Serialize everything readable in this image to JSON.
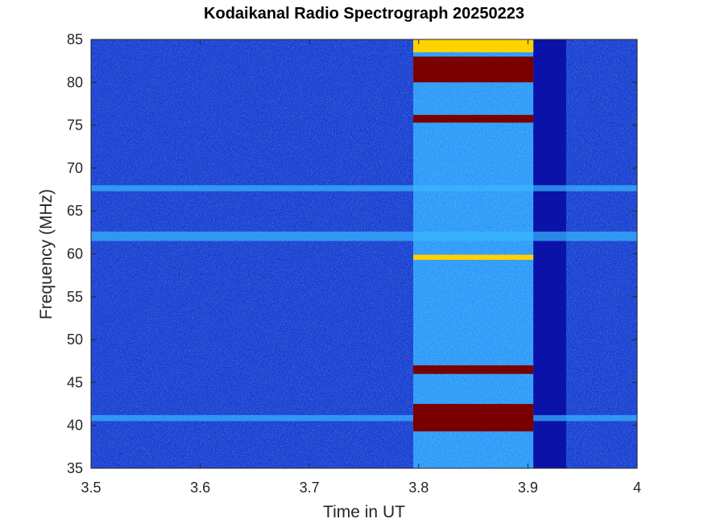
{
  "chart_data": {
    "type": "heatmap",
    "title": "Kodaikanal Radio Spectrograph  20250223",
    "xlabel": "Time in UT",
    "ylabel": "Frequency (MHz)",
    "xlim": [
      3.5,
      4.0
    ],
    "ylim": [
      35,
      85
    ],
    "x_ticks": [
      3.5,
      3.6,
      3.7,
      3.8,
      3.9,
      4.0
    ],
    "x_tick_labels": [
      "3.5",
      "3.6",
      "3.7",
      "3.8",
      "3.9",
      "4"
    ],
    "y_ticks": [
      35,
      40,
      45,
      50,
      55,
      60,
      65,
      70,
      75,
      80,
      85
    ],
    "y_tick_labels": [
      "35",
      "40",
      "45",
      "50",
      "55",
      "60",
      "65",
      "70",
      "75",
      "80",
      "85"
    ],
    "grid": false,
    "colormap": "jet",
    "colors": {
      "background": "#1a3fd0",
      "quiet": "#0a12a8",
      "burst": "#2fa8ff",
      "saturated": "#7a0000",
      "hot": "#ffd200"
    },
    "regions": [
      {
        "name": "burst-interval",
        "t_start": 3.795,
        "t_end": 3.905,
        "level": "high"
      },
      {
        "name": "quiet-gap",
        "t_start": 3.905,
        "t_end": 3.935,
        "level": "low"
      }
    ],
    "bands": [
      {
        "name": "band-41",
        "f_start": 40.5,
        "f_end": 41.2,
        "level": "medium"
      },
      {
        "name": "band-62",
        "f_start": 61.5,
        "f_end": 62.6,
        "level": "medium"
      },
      {
        "name": "band-67",
        "f_start": 67.3,
        "f_end": 68.0,
        "level": "medium"
      },
      {
        "name": "band-burst-40",
        "f_start": 39.3,
        "f_end": 42.5,
        "level": "saturated",
        "t_start": 3.795,
        "t_end": 3.905
      },
      {
        "name": "band-burst-46",
        "f_start": 46.0,
        "f_end": 47.0,
        "level": "saturated",
        "t_start": 3.795,
        "t_end": 3.905
      },
      {
        "name": "band-burst-60",
        "f_start": 59.3,
        "f_end": 59.9,
        "level": "hot",
        "t_start": 3.795,
        "t_end": 3.905
      },
      {
        "name": "band-burst-75",
        "f_start": 75.3,
        "f_end": 76.2,
        "level": "saturated",
        "t_start": 3.795,
        "t_end": 3.905
      },
      {
        "name": "band-burst-80",
        "f_start": 80.0,
        "f_end": 83.0,
        "level": "saturated",
        "t_start": 3.795,
        "t_end": 3.905
      },
      {
        "name": "band-burst-85",
        "f_start": 83.5,
        "f_end": 85.0,
        "level": "hot",
        "t_start": 3.795,
        "t_end": 3.905
      }
    ]
  }
}
